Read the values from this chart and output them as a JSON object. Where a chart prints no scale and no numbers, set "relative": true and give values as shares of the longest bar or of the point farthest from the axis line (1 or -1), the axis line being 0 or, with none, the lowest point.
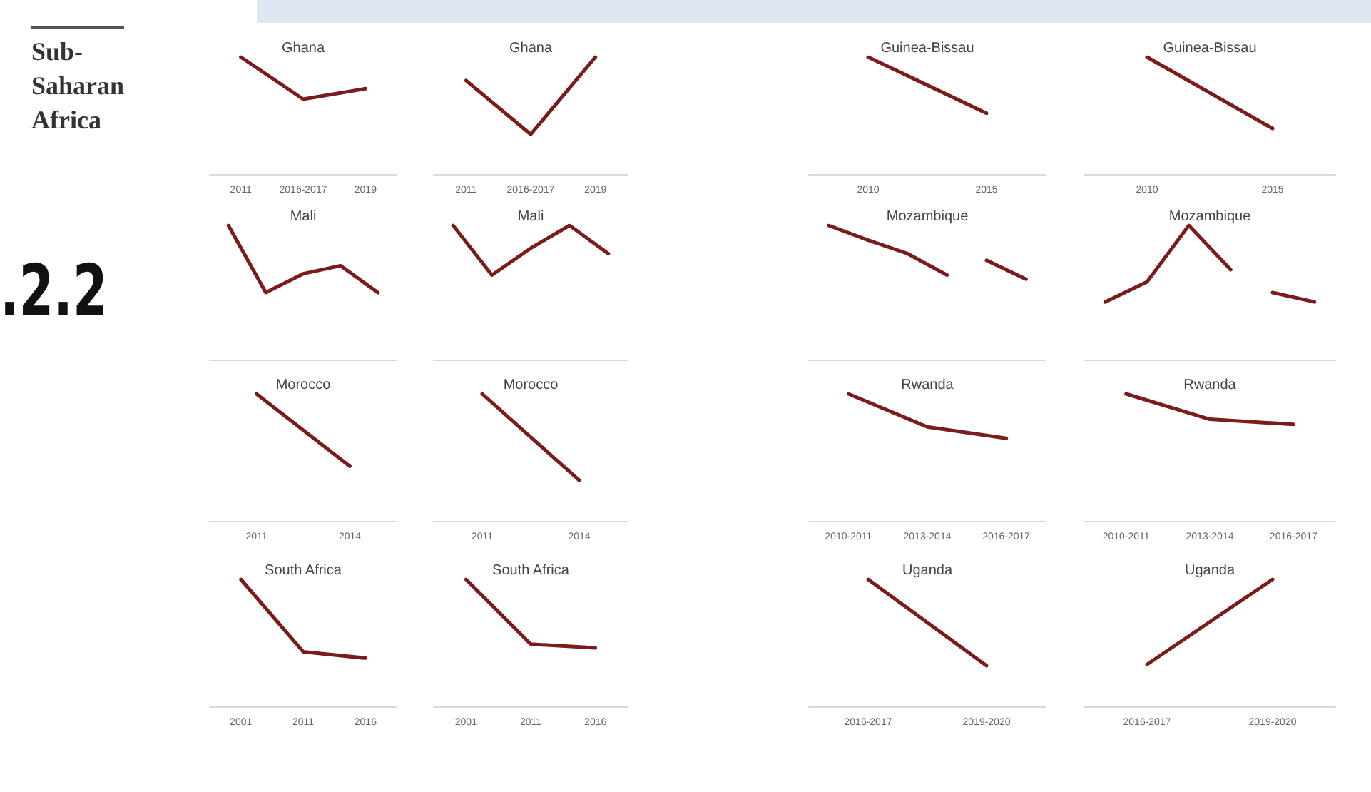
{
  "chart_data": [
    {
      "type": "line",
      "title": "Ghana",
      "relative": true,
      "categories": [
        "2011",
        "2016-2017",
        "2019"
      ],
      "series": [
        {
          "color": "#7b1c1c",
          "values": [
            1,
            0.64,
            0.73
          ]
        }
      ],
      "annotations": [
        "Sub-\nSaharan\nAfrica",
        ".2.2"
      ]
    },
    {
      "type": "line",
      "title": "Ghana",
      "relative": true,
      "categories": [
        "2011",
        "2016-2017",
        "2019"
      ],
      "series": [
        {
          "color": "#7b1c1c",
          "values": [
            0.8,
            0.34,
            1
          ]
        }
      ]
    },
    {
      "type": "line",
      "title": "Mali",
      "relative": true,
      "categories": [
        null,
        null,
        null,
        null,
        null
      ],
      "series": [
        {
          "color": "#7b1c1c",
          "values": [
            1,
            0.5,
            0.64,
            0.7,
            0.5
          ]
        }
      ]
    },
    {
      "type": "line",
      "title": "Mali",
      "relative": true,
      "categories": [
        null,
        null,
        null,
        null,
        null
      ],
      "series": [
        {
          "color": "#7b1c1c",
          "values": [
            1,
            0.63,
            0.83,
            1,
            0.79
          ]
        }
      ]
    },
    {
      "type": "line",
      "title": "Morocco",
      "relative": true,
      "categories": [
        "2011",
        "2014"
      ],
      "series": [
        {
          "color": "#7b1c1c",
          "values": [
            1,
            0.43
          ]
        }
      ]
    },
    {
      "type": "line",
      "title": "Morocco",
      "relative": true,
      "categories": [
        "2011",
        "2014"
      ],
      "series": [
        {
          "color": "#7b1c1c",
          "values": [
            1,
            0.32
          ]
        }
      ]
    },
    {
      "type": "line",
      "title": "South Africa",
      "relative": true,
      "categories": [
        "2001",
        "2011",
        "2016"
      ],
      "series": [
        {
          "color": "#7b1c1c",
          "values": [
            1,
            0.43,
            0.38
          ]
        }
      ]
    },
    {
      "type": "line",
      "title": "South Africa",
      "relative": true,
      "categories": [
        "2001",
        "2011",
        "2016"
      ],
      "series": [
        {
          "color": "#7b1c1c",
          "values": [
            1,
            0.49,
            0.46
          ]
        }
      ]
    },
    {
      "type": "line",
      "title": "Guinea-Bissau",
      "relative": true,
      "categories": [
        "2010",
        "2015"
      ],
      "series": [
        {
          "color": "#7b1c1c",
          "values": [
            1,
            0.52
          ]
        }
      ]
    },
    {
      "type": "line",
      "title": "Guinea-Bissau",
      "relative": true,
      "categories": [
        "2010",
        "2015"
      ],
      "series": [
        {
          "color": "#7b1c1c",
          "values": [
            1,
            0.39
          ]
        }
      ]
    },
    {
      "type": "line",
      "title": "Mozambique",
      "relative": true,
      "categories": [
        null,
        null,
        null,
        null,
        null,
        null
      ],
      "series": [
        {
          "color": "#7b1c1c",
          "values": [
            1,
            0.89,
            0.79,
            0.63,
            null,
            null
          ]
        },
        {
          "color": "#7b1c1c",
          "values": [
            null,
            null,
            null,
            null,
            0.74,
            0.6
          ]
        }
      ]
    },
    {
      "type": "line",
      "title": "Mozambique",
      "relative": true,
      "categories": [
        null,
        null,
        null,
        null,
        null,
        null
      ],
      "series": [
        {
          "color": "#7b1c1c",
          "values": [
            0.43,
            0.58,
            1,
            0.67,
            null,
            null
          ]
        },
        {
          "color": "#7b1c1c",
          "values": [
            null,
            null,
            null,
            null,
            0.5,
            0.43
          ]
        }
      ]
    },
    {
      "type": "line",
      "title": "Rwanda",
      "relative": true,
      "categories": [
        "2010-2011",
        "2013-2014",
        "2016-2017"
      ],
      "series": [
        {
          "color": "#7b1c1c",
          "values": [
            1,
            0.74,
            0.65
          ]
        }
      ]
    },
    {
      "type": "line",
      "title": "Rwanda",
      "relative": true,
      "categories": [
        "2010-2011",
        "2013-2014",
        "2016-2017"
      ],
      "series": [
        {
          "color": "#7b1c1c",
          "values": [
            1,
            0.8,
            0.76
          ]
        }
      ]
    },
    {
      "type": "line",
      "title": "Uganda",
      "relative": true,
      "categories": [
        "2016-2017",
        "2019-2020"
      ],
      "series": [
        {
          "color": "#7b1c1c",
          "values": [
            1,
            0.32
          ]
        }
      ]
    },
    {
      "type": "line",
      "title": "Uganda",
      "relative": true,
      "categories": [
        "2016-2017",
        "2019-2020"
      ],
      "series": [
        {
          "color": "#7b1c1c",
          "values": [
            0.33,
            1
          ]
        }
      ]
    }
  ]
}
